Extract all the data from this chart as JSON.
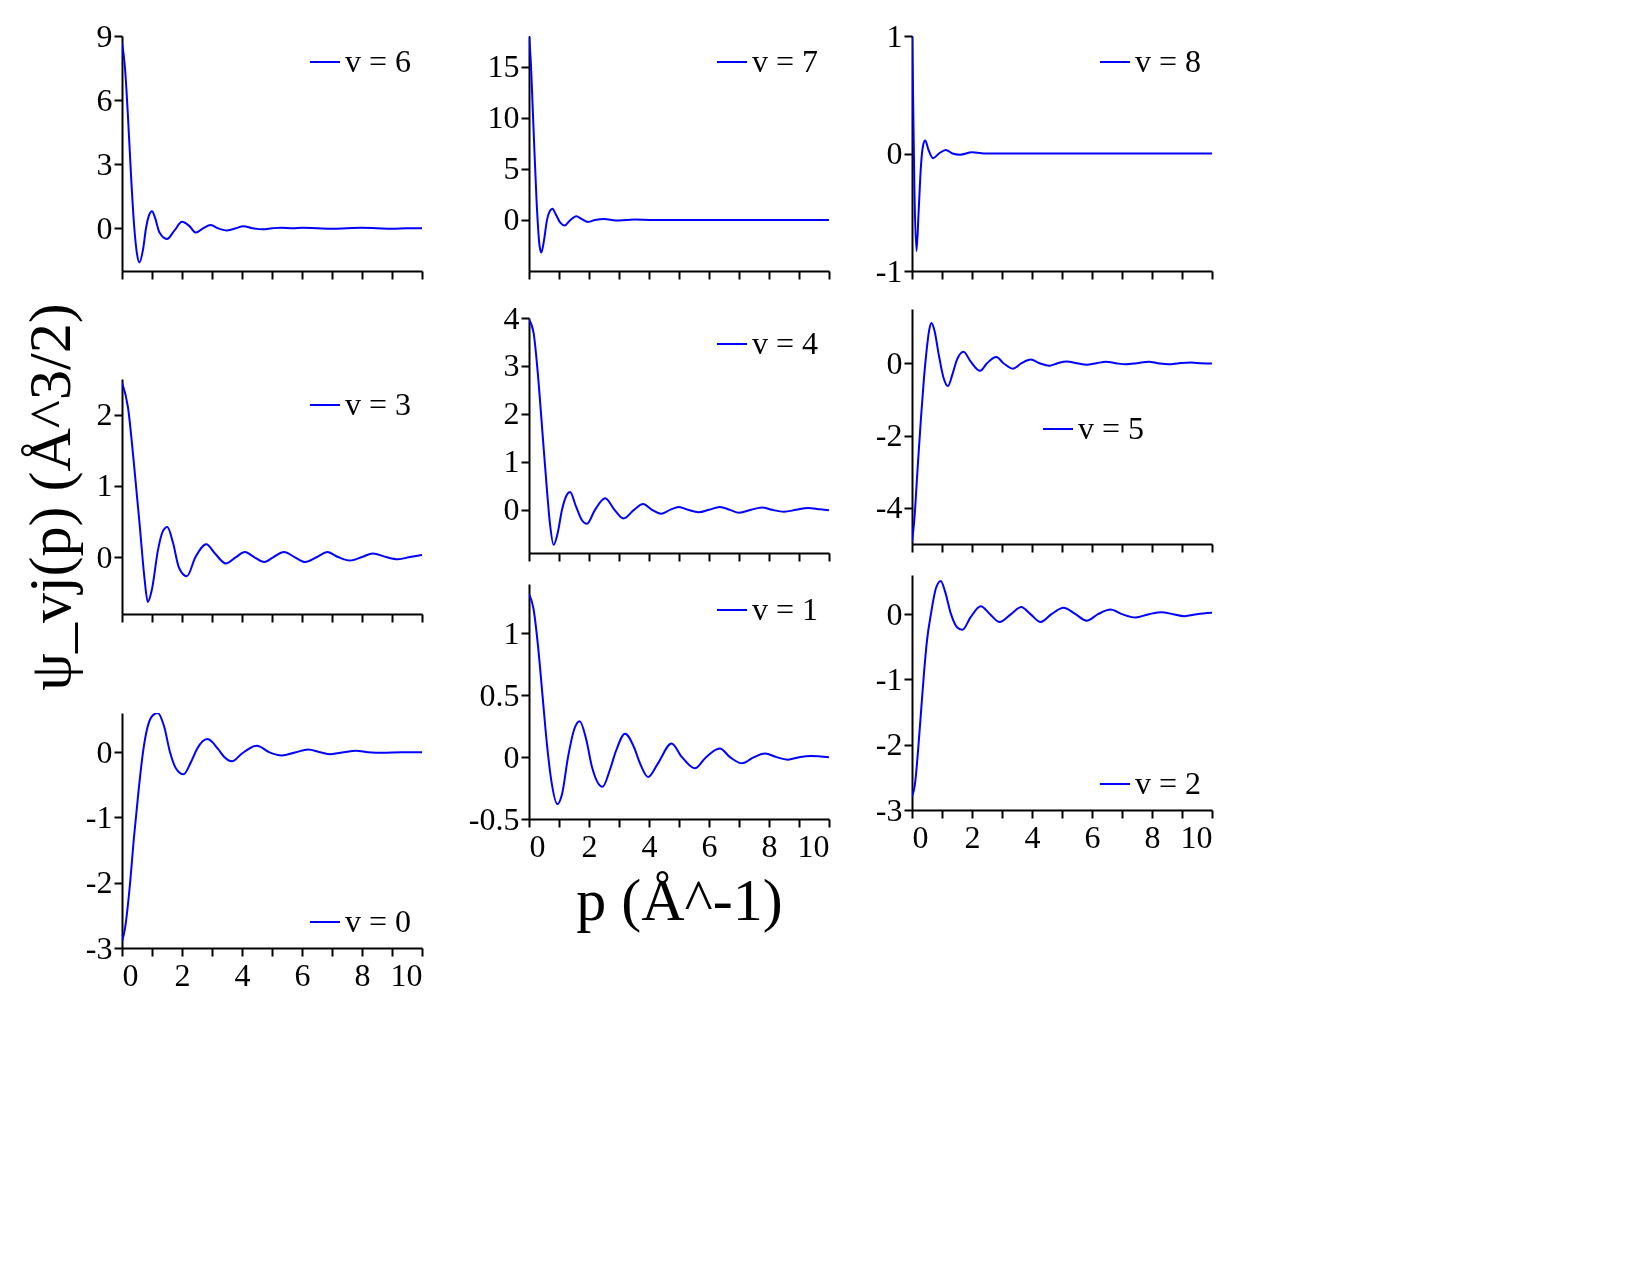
{
  "chart_data": [
    {
      "type": "line",
      "xlim": [
        0,
        10
      ],
      "xticks": [
        0,
        {
          "value": 1,
          "label": null
        },
        2,
        {
          "value": 3,
          "label": null
        },
        4,
        {
          "value": 5,
          "label": null
        },
        6,
        {
          "value": 7,
          "label": null
        },
        8,
        {
          "value": 9,
          "label": null
        },
        10
      ],
      "ylim": [
        -2,
        9
      ],
      "yticks": [
        0,
        3,
        6,
        9
      ],
      "tick_labels": "y",
      "legend": "top right",
      "series": [
        {
          "name": "v = 6",
          "color": "#0000ff",
          "x": [
            0,
            0.1,
            0.2,
            0.3,
            0.4,
            0.5,
            0.58,
            0.7,
            0.8,
            0.9,
            1.0,
            1.1,
            1.25,
            1.5,
            1.75,
            2.0,
            2.25,
            2.46,
            2.7,
            2.96,
            3.2,
            3.5,
            3.8,
            4.04,
            4.35,
            4.7,
            5.0,
            5.3,
            5.7,
            6.0,
            6.5,
            7.0,
            7.5,
            8.0,
            8.5,
            9.0,
            9.5,
            10
          ],
          "values": [
            8.7,
            7.5,
            5.2,
            2.5,
            0.2,
            -1.2,
            -1.6,
            -1.0,
            0.0,
            0.6,
            0.8,
            0.5,
            -0.2,
            -0.5,
            -0.1,
            0.3,
            0.1,
            -0.2,
            0,
            0.15,
            0,
            -0.1,
            0,
            0.1,
            0,
            -0.05,
            0,
            0.03,
            0,
            0.02,
            0,
            -0.02,
            0,
            0.02,
            0,
            -0.02,
            0,
            0
          ]
        }
      ]
    },
    {
      "type": "line",
      "xlim": [
        0,
        10
      ],
      "xticks": [
        0,
        {
          "value": 1,
          "label": null
        },
        2,
        {
          "value": 3,
          "label": null
        },
        4,
        {
          "value": 5,
          "label": null
        },
        6,
        {
          "value": 7,
          "label": null
        },
        8,
        {
          "value": 9,
          "label": null
        },
        10
      ],
      "ylim": [
        -5,
        18
      ],
      "yticks": [
        0,
        5,
        10,
        15
      ],
      "tick_labels": "y",
      "legend": "top right",
      "series": [
        {
          "name": "v = 7",
          "color": "#0000ff",
          "x": [
            0,
            0.05,
            0.15,
            0.25,
            0.35,
            0.41,
            0.5,
            0.6,
            0.7,
            0.78,
            0.9,
            1.05,
            1.19,
            1.35,
            1.58,
            1.75,
            1.97,
            2.2,
            2.52,
            2.75,
            3.0,
            3.5,
            4,
            4.5,
            5,
            6,
            7,
            8,
            9,
            10
          ],
          "values": [
            18,
            16,
            9,
            2,
            -2.5,
            -3.2,
            -2,
            0,
            0.9,
            1.1,
            0.5,
            -0.3,
            -0.55,
            -0.1,
            0.35,
            0.1,
            -0.2,
            0,
            0.1,
            0,
            -0.05,
            0.03,
            0,
            -0.02,
            0,
            0,
            0,
            0,
            0,
            0
          ]
        }
      ]
    },
    {
      "type": "line",
      "xlim": [
        0,
        10
      ],
      "xticks": [
        0,
        {
          "value": 1,
          "label": null
        },
        2,
        {
          "value": 3,
          "label": null
        },
        4,
        {
          "value": 5,
          "label": null
        },
        6,
        {
          "value": 7,
          "label": null
        },
        8,
        {
          "value": 9,
          "label": null
        },
        10
      ],
      "ylim": [
        -1,
        1
      ],
      "yticks": [
        -1,
        0,
        1
      ],
      "tick_labels": "y",
      "legend": "top right",
      "series": [
        {
          "name": "v = 8",
          "color": "#0000ff",
          "x": [
            0,
            0.03,
            0.08,
            0.15,
            0.22,
            0.3,
            0.38,
            0.44,
            0.55,
            0.7,
            0.9,
            1.13,
            1.35,
            1.6,
            2,
            2.5,
            3,
            4,
            5,
            6,
            7,
            8,
            9,
            10
          ],
          "values": [
            1.0,
            0.6,
            -0.3,
            -0.83,
            -0.5,
            -0.1,
            0.08,
            0.11,
            0.03,
            -0.04,
            0,
            0.03,
            0,
            -0.01,
            0.01,
            0,
            0,
            0,
            0,
            0,
            0,
            0,
            0,
            0
          ]
        }
      ]
    },
    {
      "type": "line",
      "xlim": [
        0,
        10
      ],
      "xticks": [
        0,
        {
          "value": 1,
          "label": null
        },
        2,
        {
          "value": 3,
          "label": null
        },
        4,
        {
          "value": 5,
          "label": null
        },
        6,
        {
          "value": 7,
          "label": null
        },
        8,
        {
          "value": 9,
          "label": null
        },
        10
      ],
      "ylim": [
        -0.8,
        2.5
      ],
      "yticks": [
        0,
        1,
        2
      ],
      "tick_labels": "y",
      "legend": "top right",
      "ylabel": "ψ_vj(p) (Å^3/2)",
      "series": [
        {
          "name": "v = 3",
          "color": "#0000ff",
          "x": [
            0,
            0.2,
            0.4,
            0.6,
            0.75,
            0.86,
            1.0,
            1.2,
            1.35,
            1.51,
            1.7,
            1.9,
            2.16,
            2.45,
            2.81,
            3.1,
            3.46,
            3.8,
            4.1,
            4.4,
            4.75,
            5.05,
            5.4,
            5.75,
            6.1,
            6.5,
            6.85,
            7.2,
            7.6,
            8.0,
            8.36,
            8.8,
            9.2,
            9.6,
            10
          ],
          "values": [
            2.45,
            2.1,
            1.3,
            0.4,
            -0.3,
            -0.63,
            -0.45,
            0.1,
            0.35,
            0.42,
            0.2,
            -0.15,
            -0.27,
            0,
            0.18,
            0.05,
            -0.09,
            0,
            0.07,
            0,
            -0.07,
            0,
            0.07,
            0,
            -0.07,
            0,
            0.07,
            0,
            -0.05,
            0,
            0.05,
            0,
            -0.03,
            0,
            0.03
          ]
        }
      ]
    },
    {
      "type": "line",
      "xlim": [
        0,
        10
      ],
      "xticks": [
        0,
        {
          "value": 1,
          "label": null
        },
        2,
        {
          "value": 3,
          "label": null
        },
        4,
        {
          "value": 5,
          "label": null
        },
        6,
        {
          "value": 7,
          "label": null
        },
        8,
        {
          "value": 9,
          "label": null
        },
        10
      ],
      "ylim": [
        -0.9,
        4
      ],
      "yticks": [
        0,
        1,
        2,
        3,
        4
      ],
      "tick_labels": "y",
      "legend": "top right",
      "series": [
        {
          "name": "v = 4",
          "color": "#0000ff",
          "x": [
            0,
            0.15,
            0.3,
            0.45,
            0.6,
            0.7,
            0.82,
            0.95,
            1.1,
            1.25,
            1.37,
            1.55,
            1.75,
            1.93,
            2.2,
            2.54,
            2.85,
            3.15,
            3.5,
            3.8,
            4.1,
            4.4,
            4.7,
            5.0,
            5.3,
            5.66,
            6.0,
            6.36,
            6.7,
            7.0,
            7.4,
            7.77,
            8.1,
            8.5,
            8.9,
            9.3,
            9.7,
            10
          ],
          "values": [
            3.96,
            3.7,
            2.8,
            1.6,
            0.4,
            -0.3,
            -0.73,
            -0.5,
            0,
            0.3,
            0.37,
            0.1,
            -0.2,
            -0.29,
            0,
            0.24,
            0,
            -0.18,
            0,
            0.12,
            0,
            -0.08,
            0,
            0.06,
            0,
            -0.05,
            0,
            0.06,
            0,
            -0.06,
            0,
            0.05,
            0,
            -0.04,
            0,
            0.04,
            0.01,
            -0.01
          ]
        }
      ]
    },
    {
      "type": "line",
      "xlim": [
        0,
        10
      ],
      "xticks": [
        0,
        {
          "value": 1,
          "label": null
        },
        2,
        {
          "value": 3,
          "label": null
        },
        4,
        {
          "value": 5,
          "label": null
        },
        6,
        {
          "value": 7,
          "label": null
        },
        8,
        {
          "value": 9,
          "label": null
        },
        10
      ],
      "ylim": [
        -5,
        1.5
      ],
      "yticks": [
        -4,
        -2,
        0
      ],
      "tick_labels": "y",
      "legend": "right",
      "series": [
        {
          "name": "v = 5",
          "color": "#0000ff",
          "x": [
            0,
            0.08,
            0.18,
            0.3,
            0.4,
            0.48,
            0.57,
            0.65,
            0.75,
            0.9,
            1.05,
            1.2,
            1.35,
            1.5,
            1.72,
            1.95,
            2.27,
            2.5,
            2.81,
            3.05,
            3.36,
            3.65,
            3.96,
            4.25,
            4.58,
            4.85,
            5.16,
            5.5,
            5.82,
            6.15,
            6.47,
            6.8,
            7.12,
            7.5,
            7.89,
            8.2,
            8.54,
            8.9,
            9.3,
            9.65,
            10
          ],
          "values": [
            -4.95,
            -4.3,
            -3.0,
            -1.5,
            -0.4,
            0.3,
            0.9,
            1.11,
            0.9,
            0.2,
            -0.4,
            -0.63,
            -0.3,
            0.1,
            0.32,
            0.05,
            -0.21,
            0,
            0.17,
            0,
            -0.15,
            0,
            0.1,
            0,
            -0.07,
            0,
            0.05,
            0,
            -0.04,
            0,
            0.04,
            0,
            -0.03,
            0,
            0.04,
            0,
            -0.03,
            0,
            0.02,
            0,
            -0.01
          ]
        }
      ]
    },
    {
      "type": "line",
      "xlim": [
        0,
        10
      ],
      "xticks": [
        0,
        {
          "value": 1,
          "label": null
        },
        2,
        {
          "value": 3,
          "label": null
        },
        4,
        {
          "value": 5,
          "label": null
        },
        6,
        {
          "value": 7,
          "label": null
        },
        8,
        {
          "value": 9,
          "label": null
        },
        10
      ],
      "ylim": [
        -3,
        0.6
      ],
      "yticks": [
        -3,
        -2,
        -1,
        0
      ],
      "legend": "bottom right",
      "series": [
        {
          "name": "v = 0",
          "color": "#0000ff",
          "x": [
            0,
            0.1,
            0.25,
            0.4,
            0.55,
            0.7,
            0.85,
            1.0,
            1.19,
            1.4,
            1.6,
            1.8,
            2.05,
            2.3,
            2.5,
            2.85,
            3.2,
            3.4,
            3.67,
            4.0,
            4.5,
            4.9,
            5.33,
            5.8,
            6.2,
            6.6,
            6.95,
            7.4,
            7.8,
            8.2,
            8.7,
            9.3,
            10
          ],
          "values": [
            -2.9,
            -2.7,
            -2.1,
            -1.3,
            -0.6,
            0,
            0.38,
            0.55,
            0.6,
            0.4,
            0.0,
            -0.25,
            -0.34,
            -0.15,
            0.05,
            0.2,
            0.05,
            -0.07,
            -0.14,
            -0.02,
            0.1,
            0,
            -0.05,
            0,
            0.04,
            0,
            -0.03,
            0,
            0.02,
            0,
            -0.01,
            0,
            0
          ]
        }
      ]
    },
    {
      "type": "line",
      "xlim": [
        0,
        10
      ],
      "xticks": [
        0,
        {
          "value": 1,
          "label": null
        },
        2,
        {
          "value": 3,
          "label": null
        },
        4,
        {
          "value": 5,
          "label": null
        },
        6,
        {
          "value": 7,
          "label": null
        },
        8,
        {
          "value": 9,
          "label": null
        },
        10
      ],
      "ylim": [
        -0.5,
        1.4
      ],
      "yticks": [
        -0.5,
        0,
        0.5,
        1
      ],
      "legend": "top right",
      "xlabel": "p (Å^-1)",
      "series": [
        {
          "name": "v = 1",
          "color": "#0000ff",
          "x": [
            0,
            0.15,
            0.3,
            0.45,
            0.6,
            0.75,
            0.95,
            1.1,
            1.3,
            1.5,
            1.69,
            1.9,
            2.1,
            2.45,
            2.7,
            2.9,
            3.2,
            3.5,
            3.7,
            3.97,
            4.3,
            4.75,
            5.1,
            5.53,
            5.9,
            6.36,
            6.7,
            7.1,
            7.5,
            7.87,
            8.25,
            8.63,
            9.0,
            9.4,
            10
          ],
          "values": [
            1.32,
            1.2,
            0.9,
            0.5,
            0.1,
            -0.2,
            -0.38,
            -0.3,
            0,
            0.22,
            0.29,
            0.15,
            -0.08,
            -0.24,
            -0.1,
            0.05,
            0.19,
            0.08,
            -0.05,
            -0.16,
            -0.05,
            0.11,
            0,
            -0.09,
            0,
            0.07,
            0,
            -0.05,
            0,
            0.03,
            0,
            -0.02,
            0,
            0.01,
            0
          ]
        }
      ]
    },
    {
      "type": "line",
      "xlim": [
        0,
        10
      ],
      "xticks": [
        0,
        {
          "value": 1,
          "label": null
        },
        2,
        {
          "value": 3,
          "label": null
        },
        4,
        {
          "value": 5,
          "label": null
        },
        6,
        {
          "value": 7,
          "label": null
        },
        8,
        {
          "value": 9,
          "label": null
        },
        10
      ],
      "ylim": [
        -3,
        0.6
      ],
      "yticks": [
        -3,
        -2,
        -1,
        0
      ],
      "legend": "bottom right",
      "series": [
        {
          "name": "v = 2",
          "color": "#0000ff",
          "x": [
            0,
            0.1,
            0.2,
            0.3,
            0.4,
            0.5,
            0.63,
            0.8,
            0.96,
            1.1,
            1.3,
            1.5,
            1.68,
            1.95,
            2.29,
            2.6,
            2.92,
            3.3,
            3.64,
            3.95,
            4.29,
            4.65,
            5.05,
            5.45,
            5.82,
            6.2,
            6.62,
            7.0,
            7.45,
            7.9,
            8.32,
            8.7,
            9.08,
            9.5,
            10
          ],
          "values": [
            -2.8,
            -2.6,
            -2.1,
            -1.5,
            -0.9,
            -0.4,
            0,
            0.4,
            0.51,
            0.35,
            0,
            -0.2,
            -0.24,
            -0.05,
            0.12,
            0,
            -0.12,
            0,
            0.11,
            0,
            -0.12,
            0,
            0.1,
            0,
            -0.1,
            0,
            0.07,
            0,
            -0.05,
            0,
            0.03,
            0,
            -0.03,
            0,
            0.02
          ]
        }
      ]
    }
  ]
}
